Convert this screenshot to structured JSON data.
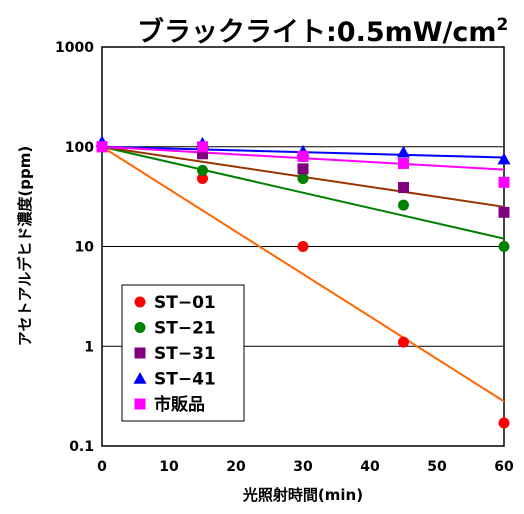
{
  "chart_data": {
    "type": "scatter",
    "title_main": "ブラックライト:0.5mW/cm",
    "title_sup": "2",
    "xlabel": "光照射時間(min)",
    "ylabel": "アセトアルデヒド濃度(ppm)",
    "xlim": [
      0,
      60
    ],
    "ylim": [
      0.1,
      1000
    ],
    "y_scale": "log",
    "x_ticks": [
      0,
      10,
      20,
      30,
      40,
      50,
      60
    ],
    "y_ticks": [
      0.1,
      1,
      10,
      100,
      1000
    ],
    "y_tick_labels": [
      "0.1",
      "1",
      "10",
      "100",
      "1000"
    ],
    "grid": "horizontal",
    "legend_position": "bottom-left",
    "series": [
      {
        "name": "ST−01",
        "marker": "circle",
        "color": "#ff0000",
        "line_color": "#ff6600",
        "x": [
          0,
          15,
          30,
          45,
          60
        ],
        "y": [
          100,
          48,
          10,
          1.1,
          0.17
        ],
        "fit": [
          [
            0,
            100
          ],
          [
            60,
            0.28
          ]
        ]
      },
      {
        "name": "ST−21",
        "marker": "circle",
        "color": "#008000",
        "line_color": "#008000",
        "x": [
          0,
          15,
          30,
          45,
          60
        ],
        "y": [
          100,
          58,
          48,
          26,
          10
        ],
        "fit": [
          [
            0,
            100
          ],
          [
            60,
            12
          ]
        ]
      },
      {
        "name": "ST−31",
        "marker": "square",
        "color": "#800080",
        "line_color": "#993300",
        "x": [
          0,
          15,
          30,
          45,
          60
        ],
        "y": [
          100,
          85,
          60,
          39,
          22
        ],
        "fit": [
          [
            0,
            100
          ],
          [
            60,
            25
          ]
        ]
      },
      {
        "name": "ST−41",
        "marker": "triangle",
        "color": "#0000ff",
        "line_color": "#0000ff",
        "x": [
          0,
          15,
          30,
          45,
          60
        ],
        "y": [
          112,
          108,
          90,
          88,
          75
        ],
        "fit": [
          [
            0,
            100
          ],
          [
            60,
            78
          ]
        ]
      },
      {
        "name": "市販品",
        "marker": "square",
        "color": "#ff00ff",
        "line_color": "#ff00ff",
        "x": [
          0,
          15,
          30,
          45,
          60
        ],
        "y": [
          100,
          100,
          80,
          68,
          44
        ],
        "fit": [
          [
            0,
            100
          ],
          [
            60,
            59
          ]
        ]
      }
    ]
  }
}
